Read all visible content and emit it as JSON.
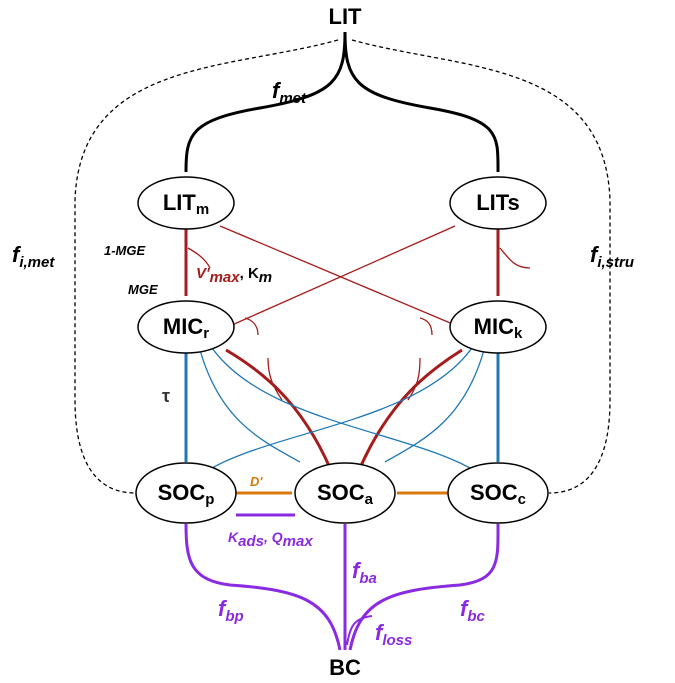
{
  "top": {
    "main": "LIT"
  },
  "bottom": {
    "main": "BC"
  },
  "nodes": [
    {
      "main": "LIT",
      "sub": "m"
    },
    {
      "main": "LITs"
    },
    {
      "main": "MIC",
      "sub": "r"
    },
    {
      "main": "MIC",
      "sub": "k"
    },
    {
      "main": "SOC",
      "sub": "p"
    },
    {
      "main": "SOC",
      "sub": "a"
    },
    {
      "main": "SOC",
      "sub": "c"
    }
  ],
  "labels": {
    "f_met": {
      "main": "f",
      "sub": "met"
    },
    "f_i_met": {
      "main": "f",
      "sub": "i,met"
    },
    "f_i_stru": {
      "main": "f",
      "sub": "i,stru"
    },
    "one_minus_mge": {
      "main": "1-MGE"
    },
    "mge": {
      "main": "MGE"
    },
    "vmax": {
      "main": "V'",
      "sub": "max"
    },
    "km": {
      "main": ", K",
      "sub": "m"
    },
    "tau": {
      "main": "τ"
    },
    "d_prime": {
      "main": "D'"
    },
    "kads": {
      "main": "K",
      "sub": "ads"
    },
    "qmax": {
      "main": ", Q",
      "sub": "max"
    },
    "f_ba": {
      "main": "f",
      "sub": "ba"
    },
    "f_bp": {
      "main": "f",
      "sub": "bp"
    },
    "f_bc": {
      "main": "f",
      "sub": "bc"
    },
    "f_loss": {
      "main": "f",
      "sub": "loss"
    }
  }
}
